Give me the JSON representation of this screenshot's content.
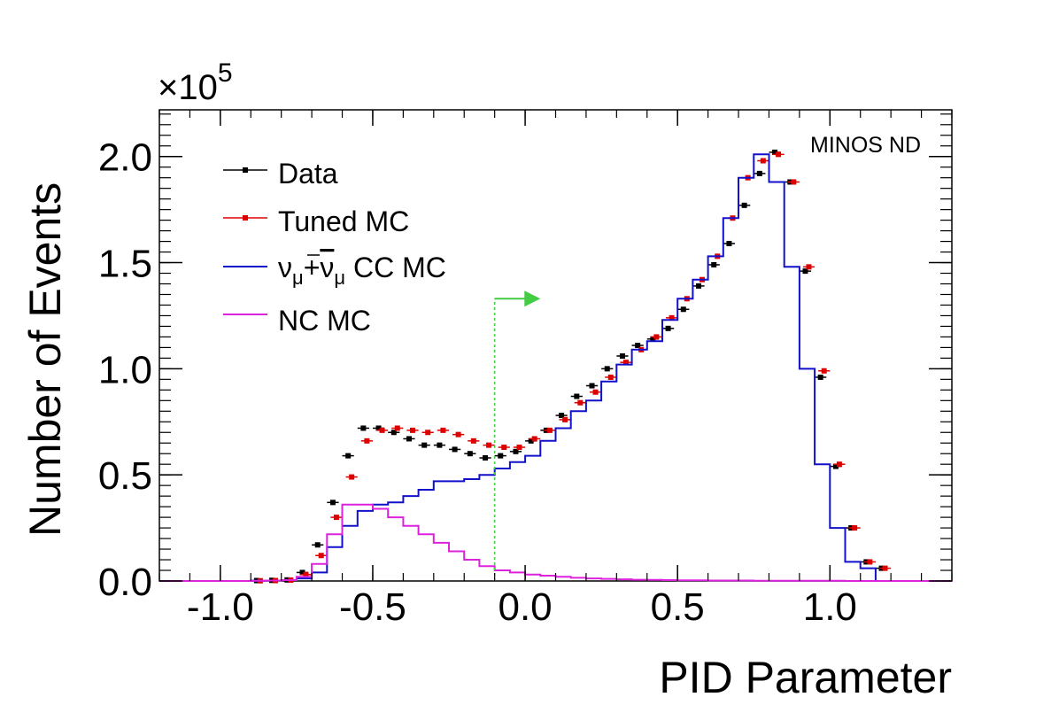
{
  "chart_data": {
    "type": "line",
    "annotation": "MINOS ND",
    "xlabel": "PID Parameter",
    "ylabel": "Number of Events",
    "y_multiplier": {
      "base": "×10",
      "exponent": "5"
    },
    "xlim": [
      -1.2,
      1.4
    ],
    "ylim": [
      0,
      2.22
    ],
    "x_ticks": [
      {
        "value": -1.0,
        "label": "-1.0"
      },
      {
        "value": -0.5,
        "label": "-0.5"
      },
      {
        "value": 0.0,
        "label": "0.0"
      },
      {
        "value": 0.5,
        "label": "0.5"
      },
      {
        "value": 1.0,
        "label": "1.0"
      }
    ],
    "y_ticks": [
      {
        "value": 0.0,
        "label": "0.0"
      },
      {
        "value": 0.5,
        "label": "0.5"
      },
      {
        "value": 1.0,
        "label": "1.0"
      },
      {
        "value": 1.5,
        "label": "1.5"
      },
      {
        "value": 2.0,
        "label": "2.0"
      }
    ],
    "bin_edges": [
      -1.2,
      -1.15,
      -1.1,
      -1.05,
      -1.0,
      -0.95,
      -0.9,
      -0.85,
      -0.8,
      -0.75,
      -0.7,
      -0.65,
      -0.6,
      -0.55,
      -0.5,
      -0.45,
      -0.4,
      -0.35,
      -0.3,
      -0.25,
      -0.2,
      -0.15,
      -0.1,
      -0.05,
      0.0,
      0.05,
      0.1,
      0.15,
      0.2,
      0.25,
      0.3,
      0.35,
      0.4,
      0.45,
      0.5,
      0.55,
      0.6,
      0.65,
      0.7,
      0.75,
      0.8,
      0.85,
      0.9,
      0.95,
      1.0,
      1.05,
      1.1,
      1.15,
      1.2,
      1.25,
      1.3,
      1.35,
      1.4
    ],
    "cut": {
      "x": -0.1,
      "y_top": 1.33,
      "arrow_end_x": 0.05,
      "color": "#44cc44"
    },
    "legend": {
      "placement": "top-left"
    },
    "series": [
      {
        "name": "Data",
        "style": "points",
        "color": "#000000",
        "values": [
          0,
          0,
          0,
          0,
          0,
          0,
          0.002,
          0.003,
          0.005,
          0.04,
          0.17,
          0.37,
          0.59,
          0.72,
          0.72,
          0.7,
          0.67,
          0.64,
          0.64,
          0.62,
          0.6,
          0.58,
          0.59,
          0.61,
          0.66,
          0.71,
          0.78,
          0.87,
          0.92,
          1.0,
          1.06,
          1.11,
          1.14,
          1.19,
          1.28,
          1.39,
          1.49,
          1.59,
          1.77,
          1.92,
          2.02,
          1.88,
          1.46,
          0.96,
          0.54,
          0.25,
          0.09,
          0.06,
          0,
          0,
          0,
          0
        ]
      },
      {
        "name": "Tuned MC",
        "style": "points",
        "color": "#dd0000",
        "values": [
          0,
          0,
          0,
          0,
          0,
          0,
          0.001,
          0.002,
          0.004,
          0.03,
          0.12,
          0.3,
          0.49,
          0.66,
          0.71,
          0.72,
          0.71,
          0.7,
          0.71,
          0.69,
          0.66,
          0.64,
          0.63,
          0.63,
          0.67,
          0.71,
          0.76,
          0.84,
          0.89,
          0.96,
          1.03,
          1.09,
          1.15,
          1.24,
          1.33,
          1.42,
          1.53,
          1.71,
          1.9,
          1.98,
          2.01,
          1.88,
          1.48,
          0.99,
          0.55,
          0.25,
          0.09,
          0.06,
          0,
          0,
          0,
          0
        ]
      },
      {
        "name": "ν_μ+ν̄_μ CC MC",
        "label_parts": {
          "nu": "ν",
          "sub": "μ",
          "plus": "+",
          "tail": "CC MC"
        },
        "style": "step",
        "color": "#1111cc",
        "values": [
          0,
          0,
          0,
          0,
          0,
          0,
          0.001,
          0.002,
          0.004,
          0.012,
          0.04,
          0.16,
          0.26,
          0.33,
          0.36,
          0.37,
          0.4,
          0.43,
          0.47,
          0.47,
          0.48,
          0.5,
          0.53,
          0.56,
          0.59,
          0.66,
          0.72,
          0.8,
          0.85,
          0.94,
          1.02,
          1.09,
          1.13,
          1.23,
          1.33,
          1.42,
          1.53,
          1.71,
          1.9,
          2.01,
          1.88,
          1.48,
          1.0,
          0.55,
          0.25,
          0.09,
          0.06,
          0,
          0,
          0,
          0,
          0
        ]
      },
      {
        "name": "NC MC",
        "style": "step",
        "color": "#dd22dd",
        "values": [
          0,
          0,
          0,
          0,
          0,
          0,
          0.001,
          0.002,
          0.004,
          0.02,
          0.08,
          0.22,
          0.36,
          0.36,
          0.34,
          0.3,
          0.26,
          0.22,
          0.18,
          0.14,
          0.1,
          0.07,
          0.05,
          0.04,
          0.03,
          0.025,
          0.02,
          0.015,
          0.012,
          0.01,
          0.008,
          0.006,
          0.005,
          0.004,
          0.003,
          0.003,
          0.002,
          0.002,
          0.002,
          0.001,
          0.001,
          0.001,
          0.001,
          0.001,
          0.001,
          0,
          0,
          0,
          0,
          0,
          0,
          0
        ]
      }
    ]
  }
}
